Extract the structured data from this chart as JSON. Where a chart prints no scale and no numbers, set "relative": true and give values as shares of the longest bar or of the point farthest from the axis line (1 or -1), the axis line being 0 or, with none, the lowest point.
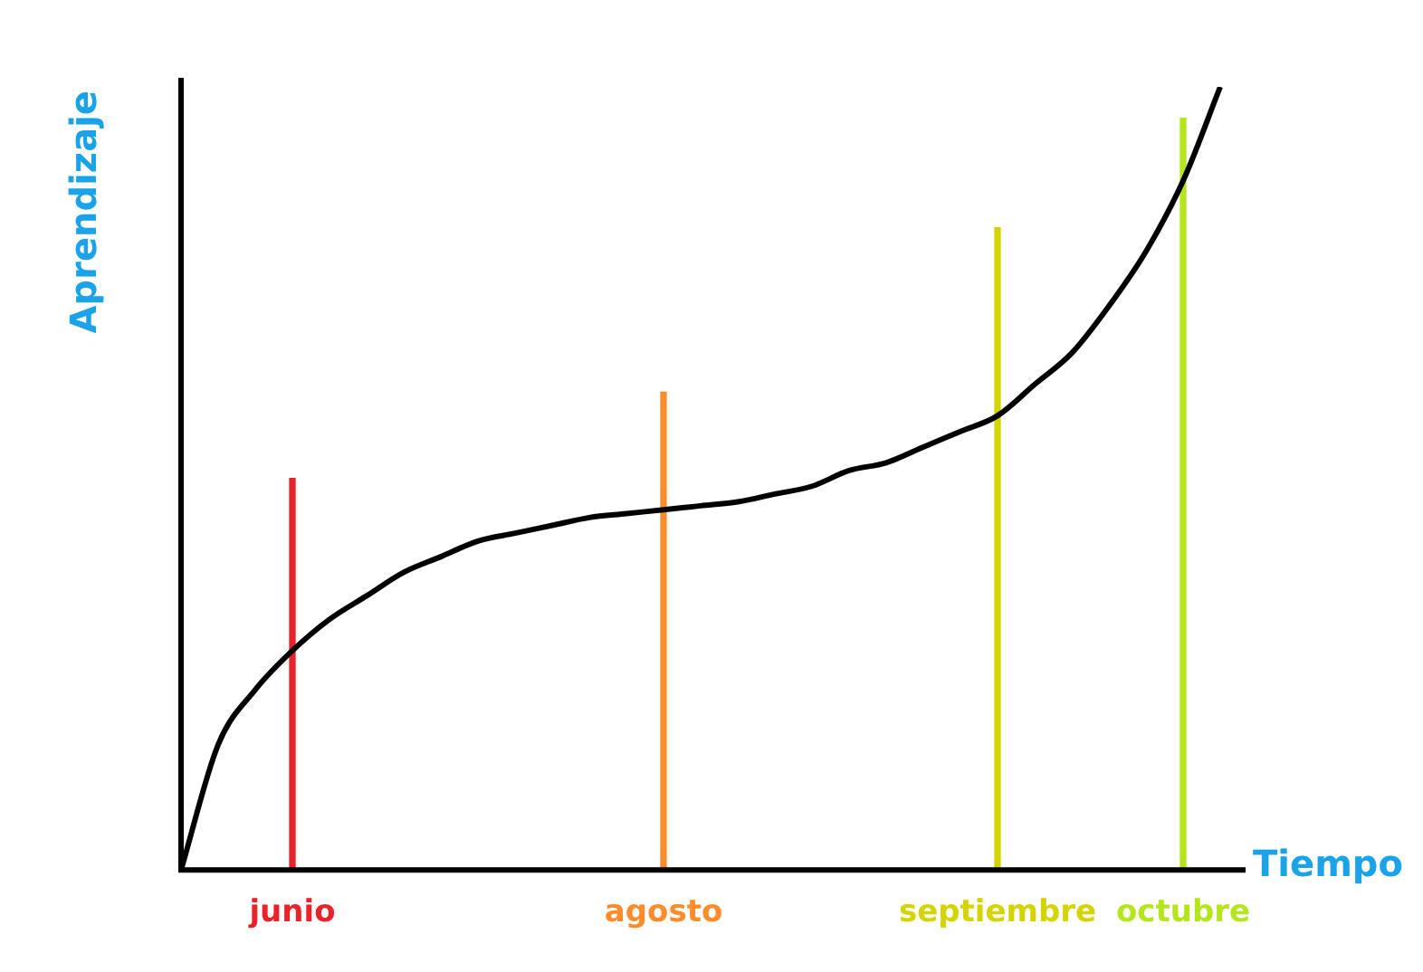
{
  "chart_data": {
    "type": "line",
    "relative": true,
    "xlabel": "Tiempo",
    "ylabel": "Aprendizaje",
    "grid": false,
    "legend": false,
    "marker": "none",
    "categories": [
      null,
      null,
      null,
      "junio",
      null,
      null,
      null,
      null,
      null,
      null,
      null,
      null,
      null,
      "agosto",
      null,
      null,
      null,
      null,
      null,
      null,
      null,
      null,
      "septiembre",
      null,
      null,
      null,
      null,
      "octubre",
      null
    ],
    "series": [
      {
        "color": "#000000",
        "values": [
          0,
          0.16,
          0.23,
          0.28,
          0.32,
          0.35,
          0.38,
          0.4,
          0.42,
          0.43,
          0.44,
          0.45,
          0.455,
          0.46,
          0.465,
          0.47,
          0.48,
          0.49,
          0.51,
          0.52,
          0.54,
          0.56,
          0.58,
          0.62,
          0.66,
          0.72,
          0.79,
          0.88,
          1
        ]
      },
      {
        "type": "bar",
        "colors": [
          null,
          null,
          null,
          "#e8232a",
          null,
          null,
          null,
          null,
          null,
          null,
          null,
          null,
          null,
          "#ff8c2a",
          null,
          null,
          null,
          null,
          null,
          null,
          null,
          null,
          "#d4d400",
          null,
          null,
          null,
          null,
          "#b5e61d",
          null
        ],
        "values": [
          null,
          null,
          null,
          0.5,
          null,
          null,
          null,
          null,
          null,
          null,
          null,
          null,
          null,
          0.61,
          null,
          null,
          null,
          null,
          null,
          null,
          null,
          null,
          0.82,
          null,
          null,
          null,
          null,
          0.96,
          null
        ]
      }
    ]
  }
}
